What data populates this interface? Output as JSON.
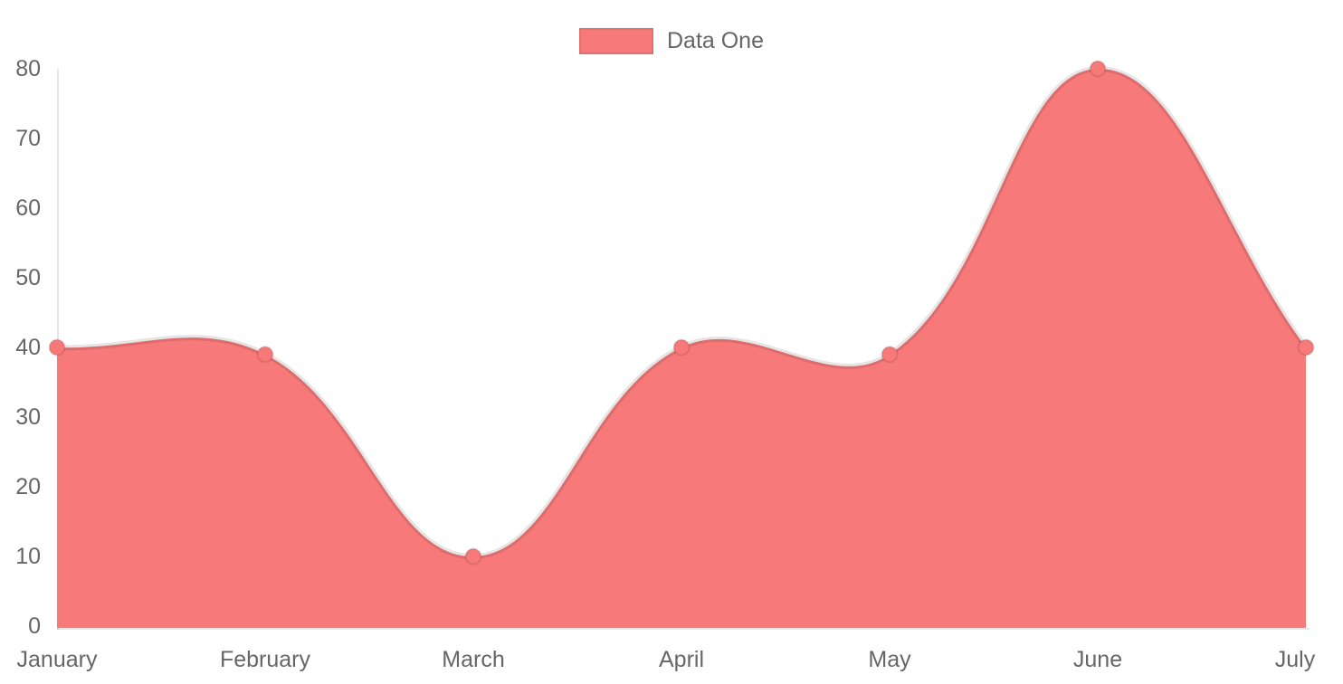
{
  "chart_data": {
    "type": "area",
    "title": "",
    "xlabel": "",
    "ylabel": "",
    "categories": [
      "January",
      "February",
      "March",
      "April",
      "May",
      "June",
      "July"
    ],
    "series": [
      {
        "name": "Data One",
        "values": [
          40,
          39,
          10,
          40,
          39,
          80,
          40
        ]
      }
    ],
    "ylim": [
      0,
      80
    ],
    "yticks": [
      0,
      10,
      20,
      30,
      40,
      50,
      60,
      70,
      80
    ],
    "grid": false,
    "legend_position": "top-center",
    "colors": {
      "fill": "#f87979",
      "point": "#f87979",
      "line": "rgba(0,0,0,0.10)",
      "axis": "rgba(0,0,0,0.10)",
      "text": "#666666"
    }
  }
}
